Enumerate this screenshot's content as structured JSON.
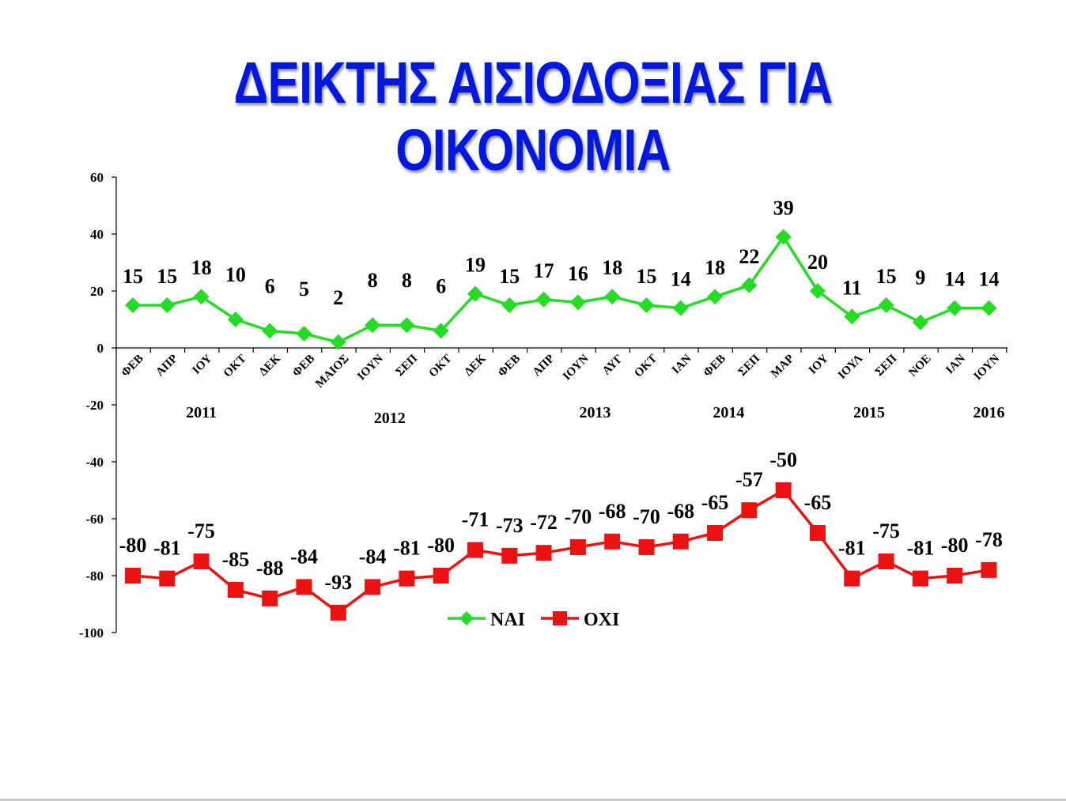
{
  "title": "ΔΕΙΚΤΗΣ ΑΙΣΙΟΔΟΞΙΑΣ ΓΙΑ ΟΙΚΟΝΟΜΙΑ",
  "chart_data": {
    "type": "line",
    "categories": [
      "ΦΕΒ",
      "ΑΠΡ",
      "ΙΟΥ",
      "ΟΚΤ",
      "ΔΕΚ",
      "ΦΕΒ",
      "ΜΑΙΟΣ",
      "ΙΟΥΝ",
      "ΣΕΠ",
      "ΟΚΤ",
      "ΔΕΚ",
      "ΦΕΒ",
      "ΑΠΡ",
      "ΙΟΥΝ",
      "ΑΥΓ",
      "ΟΚΤ",
      "ΙΑΝ",
      "ΦΕΒ",
      "ΣΕΠ",
      "ΜΑΡ",
      "ΙΟΥ",
      "ΙΟΥΛ",
      "ΣΕΠ",
      "ΝΟΕ",
      "ΙΑΝ",
      "ΙΟΥΝ"
    ],
    "years": [
      {
        "label": "2011",
        "center_index": 2
      },
      {
        "label": "2012",
        "center_index": 7.5
      },
      {
        "label": "2013",
        "center_index": 13.5
      },
      {
        "label": "2014",
        "center_index": 17.4
      },
      {
        "label": "2015",
        "center_index": 21.5
      },
      {
        "label": "2016",
        "center_index": 25
      }
    ],
    "series": [
      {
        "name": "ΝΑΙ",
        "color": "#22dd22",
        "marker": "diamond",
        "values": [
          15,
          15,
          18,
          10,
          6,
          5,
          2,
          8,
          8,
          6,
          19,
          15,
          17,
          16,
          18,
          15,
          14,
          18,
          22,
          39,
          20,
          11,
          15,
          9,
          14,
          14
        ]
      },
      {
        "name": "ΟΧΙ",
        "color": "#ee1111",
        "marker": "square",
        "values": [
          -80,
          -81,
          -75,
          -85,
          -88,
          -84,
          -93,
          -84,
          -81,
          -80,
          -71,
          -73,
          -72,
          -70,
          -68,
          -70,
          -68,
          -65,
          -57,
          -50,
          -65,
          -81,
          -75,
          -81,
          -80,
          -78
        ]
      }
    ],
    "ylim": [
      -100,
      60
    ],
    "yticks": [
      60,
      40,
      20,
      0,
      -20,
      -40,
      -60,
      -80,
      -100
    ],
    "legend": "bottom-center",
    "grid": false
  }
}
